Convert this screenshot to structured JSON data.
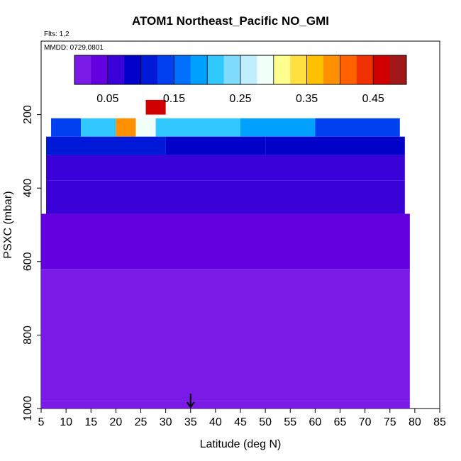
{
  "chart_data": {
    "type": "heatmap",
    "title": "ATOM1 Northeast_Pacific NO_GMI",
    "flights_note": "Flts: 1,2",
    "date_note": "MMDD: 0729,0801",
    "xlabel": "Latitude (deg N)",
    "ylabel": "PSXC (mbar)",
    "xlim": [
      5,
      85
    ],
    "ylim": [
      1000,
      0
    ],
    "x_ticks": [
      5,
      10,
      15,
      20,
      25,
      30,
      35,
      40,
      45,
      50,
      55,
      60,
      65,
      70,
      75,
      80,
      85
    ],
    "y_ticks": [
      200,
      400,
      600,
      800,
      1000
    ],
    "colorbar": {
      "range": [
        0,
        0.5
      ],
      "tick_values": [
        0.05,
        0.15,
        0.25,
        0.35,
        0.45
      ],
      "tick_labels": [
        "0.05",
        "0.15",
        "0.25",
        "0.35",
        "0.45"
      ],
      "colors": [
        "#7a1ae6",
        "#6400e0",
        "#3a00d8",
        "#0000c8",
        "#0018d8",
        "#0040f0",
        "#0070ff",
        "#00a0ff",
        "#30c8ff",
        "#80dcff",
        "#c0eeff",
        "#f0fff8",
        "#ffff90",
        "#ffe040",
        "#ffc000",
        "#ff9000",
        "#ff6000",
        "#f03000",
        "#d00000",
        "#a01818"
      ]
    },
    "marker": {
      "latitude": 35,
      "label": ""
    },
    "cells": [
      {
        "lat": [
          26,
          30
        ],
        "p": [
          160,
          200
        ],
        "value": 0.47
      },
      {
        "lat": [
          7,
          13
        ],
        "p": [
          210,
          260
        ],
        "value": 0.13
      },
      {
        "lat": [
          13,
          20
        ],
        "p": [
          210,
          260
        ],
        "value": 0.2
      },
      {
        "lat": [
          20,
          24
        ],
        "p": [
          210,
          260
        ],
        "value": 0.38
      },
      {
        "lat": [
          24,
          28
        ],
        "p": [
          210,
          260
        ],
        "value": 0.28
      },
      {
        "lat": [
          28,
          45
        ],
        "p": [
          210,
          260
        ],
        "value": 0.22
      },
      {
        "lat": [
          45,
          60
        ],
        "p": [
          210,
          260
        ],
        "value": 0.18
      },
      {
        "lat": [
          60,
          77
        ],
        "p": [
          210,
          260
        ],
        "value": 0.14
      },
      {
        "lat": [
          6,
          30
        ],
        "p": [
          260,
          310
        ],
        "value": 0.1
      },
      {
        "lat": [
          30,
          50
        ],
        "p": [
          260,
          310
        ],
        "value": 0.08
      },
      {
        "lat": [
          50,
          78
        ],
        "p": [
          260,
          310
        ],
        "value": 0.09
      },
      {
        "lat": [
          6,
          78
        ],
        "p": [
          310,
          380
        ],
        "value": 0.07
      },
      {
        "lat": [
          6,
          78
        ],
        "p": [
          380,
          470
        ],
        "value": 0.05
      },
      {
        "lat": [
          5,
          79
        ],
        "p": [
          470,
          620
        ],
        "value": 0.025
      },
      {
        "lat": [
          5,
          79
        ],
        "p": [
          620,
          980
        ],
        "value": 0.015
      },
      {
        "lat": [
          5,
          79
        ],
        "p": [
          980,
          1000
        ],
        "value": 0.01
      }
    ]
  }
}
